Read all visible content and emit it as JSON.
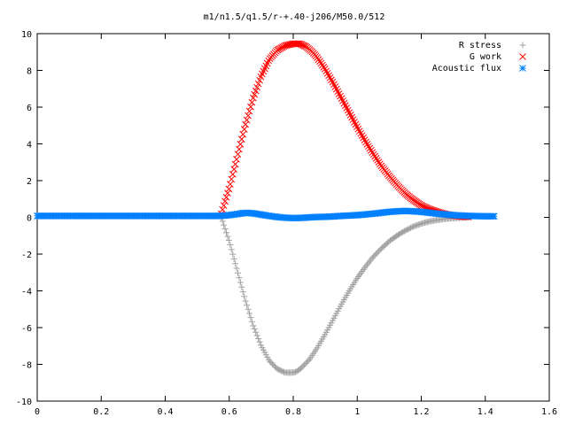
{
  "chart_data": {
    "type": "scatter",
    "title": "m1/n1.5/q1.5/r-+.40-j206/M50.0/512",
    "xlabel": "",
    "ylabel": "",
    "xlim": [
      0,
      1.6
    ],
    "ylim": [
      -10,
      10
    ],
    "x_ticks": [
      0,
      0.2,
      0.4,
      0.6,
      0.8,
      1.0,
      1.2,
      1.4,
      1.6
    ],
    "x_tick_labels": [
      "0",
      "0.2",
      "0.4",
      "0.6",
      "0.8",
      "1",
      "1.2",
      "1.4",
      "1.6"
    ],
    "y_ticks": [
      -10,
      -8,
      -6,
      -4,
      -2,
      0,
      2,
      4,
      6,
      8,
      10
    ],
    "y_tick_labels": [
      "-10",
      "-8",
      "-6",
      "-4",
      "-2",
      "0",
      "2",
      "4",
      "6",
      "8",
      "10"
    ],
    "grid": false,
    "legend_position": "top-right",
    "series": [
      {
        "name": "R stress",
        "marker": "plus",
        "color": "#a0a0a0",
        "x": [
          0.575,
          0.6,
          0.625,
          0.65,
          0.675,
          0.7,
          0.725,
          0.75,
          0.775,
          0.8,
          0.81,
          0.825,
          0.85,
          0.875,
          0.9,
          0.925,
          0.95,
          0.975,
          1.0,
          1.025,
          1.05,
          1.075,
          1.1,
          1.125,
          1.15,
          1.175,
          1.2,
          1.225,
          1.25,
          1.275,
          1.3,
          1.325,
          1.35
        ],
        "y": [
          0,
          -1.3,
          -2.9,
          -4.5,
          -5.9,
          -7.0,
          -7.8,
          -8.25,
          -8.45,
          -8.45,
          -8.4,
          -8.2,
          -7.75,
          -7.1,
          -6.35,
          -5.55,
          -4.75,
          -4.0,
          -3.3,
          -2.7,
          -2.15,
          -1.7,
          -1.3,
          -0.98,
          -0.72,
          -0.5,
          -0.34,
          -0.22,
          -0.14,
          -0.08,
          -0.04,
          -0.02,
          0
        ]
      },
      {
        "name": "G work",
        "marker": "cross",
        "color": "#ff0000",
        "x": [
          0.575,
          0.6,
          0.625,
          0.65,
          0.675,
          0.7,
          0.725,
          0.75,
          0.775,
          0.8,
          0.82,
          0.84,
          0.86,
          0.875,
          0.9,
          0.925,
          0.95,
          0.975,
          1.0,
          1.025,
          1.05,
          1.075,
          1.1,
          1.125,
          1.15,
          1.175,
          1.2,
          1.225,
          1.25,
          1.275,
          1.3,
          1.325,
          1.35
        ],
        "y": [
          0.2,
          1.6,
          3.3,
          5.0,
          6.5,
          7.7,
          8.6,
          9.1,
          9.35,
          9.45,
          9.45,
          9.3,
          9.0,
          8.7,
          8.05,
          7.3,
          6.5,
          5.7,
          4.9,
          4.15,
          3.45,
          2.8,
          2.25,
          1.75,
          1.3,
          0.95,
          0.65,
          0.45,
          0.3,
          0.18,
          0.1,
          0.05,
          0.02
        ]
      },
      {
        "name": "Acoustic flux",
        "marker": "star",
        "color": "#0080ff",
        "x": [
          0,
          0.05,
          0.1,
          0.15,
          0.2,
          0.25,
          0.3,
          0.35,
          0.4,
          0.45,
          0.5,
          0.55,
          0.575,
          0.6,
          0.625,
          0.65,
          0.675,
          0.7,
          0.725,
          0.75,
          0.775,
          0.8,
          0.825,
          0.85,
          0.875,
          0.9,
          0.925,
          0.95,
          0.975,
          1.0,
          1.025,
          1.05,
          1.075,
          1.1,
          1.125,
          1.15,
          1.175,
          1.2,
          1.225,
          1.25,
          1.275,
          1.3,
          1.325,
          1.35,
          1.375,
          1.4,
          1.43
        ],
        "y": [
          0.08,
          0.08,
          0.08,
          0.08,
          0.08,
          0.08,
          0.08,
          0.08,
          0.08,
          0.08,
          0.08,
          0.08,
          0.08,
          0.12,
          0.18,
          0.25,
          0.22,
          0.15,
          0.08,
          0.02,
          -0.02,
          -0.04,
          -0.03,
          0.0,
          0.02,
          0.03,
          0.05,
          0.08,
          0.1,
          0.12,
          0.16,
          0.2,
          0.25,
          0.3,
          0.33,
          0.35,
          0.33,
          0.3,
          0.25,
          0.2,
          0.16,
          0.12,
          0.1,
          0.08,
          0.07,
          0.06,
          0.06
        ]
      }
    ]
  }
}
